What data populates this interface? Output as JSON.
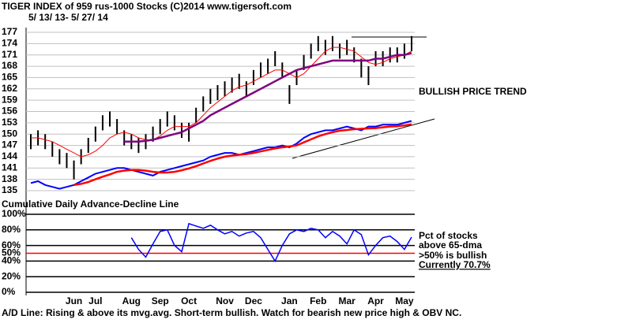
{
  "chart_data": [
    {
      "type": "stock",
      "title": "TIGER INDEX of  959 rus-1000 Stocks  (C)2014  www.tigersoft.com",
      "subtitle": "5/ 13/ 13-  5/ 27/ 14",
      "annotation": "BULLISH PRICE TREND",
      "caption": "A/D Line: Rising & above its mvg.avg. Short-term bullish. Watch for bearish new price high & OBV NC.",
      "categories": [
        null,
        null,
        null,
        null,
        null,
        null,
        "Jun",
        null,
        null,
        "Jul",
        null,
        null,
        null,
        null,
        "Aug",
        null,
        null,
        null,
        "Sep",
        null,
        null,
        null,
        "Oct",
        null,
        null,
        null,
        null,
        "Nov",
        null,
        null,
        null,
        "Dec",
        null,
        null,
        null,
        null,
        "Jan",
        null,
        null,
        null,
        "Feb",
        null,
        null,
        null,
        "Mar",
        null,
        null,
        null,
        "Apr",
        null,
        null,
        null,
        "May",
        null
      ],
      "high": [
        150,
        151,
        150,
        148,
        146,
        145,
        143,
        146,
        149,
        152,
        155,
        156,
        154,
        151,
        150,
        149,
        150,
        152,
        154,
        156,
        155,
        153,
        153,
        157,
        160,
        162,
        163,
        164,
        165,
        166,
        164,
        167,
        169,
        170,
        172,
        169,
        163,
        167,
        171,
        174,
        176,
        175,
        176,
        174,
        175,
        173,
        170,
        168,
        172,
        172,
        173,
        173,
        174,
        176
      ],
      "low": [
        146,
        147,
        146,
        144,
        142,
        141,
        138,
        142,
        145,
        148,
        151,
        152,
        150,
        147,
        146,
        145,
        146,
        148,
        150,
        152,
        151,
        149,
        148,
        153,
        156,
        158,
        159,
        160,
        161,
        162,
        160,
        163,
        165,
        166,
        168,
        165,
        158,
        163,
        167,
        170,
        172,
        171,
        172,
        170,
        171,
        169,
        165,
        163,
        168,
        168,
        169,
        169,
        170,
        172
      ],
      "bar_color": "#000000",
      "series": [
        {
          "color": "#ff0000",
          "line_width": 1,
          "values": [
            149,
            149,
            148.5,
            148,
            147,
            146,
            145,
            144,
            144.5,
            145.5,
            147,
            149,
            150,
            150.5,
            150,
            149,
            148.5,
            148.5,
            149.5,
            151,
            152,
            152,
            152,
            153,
            155,
            157,
            158.5,
            160,
            161.5,
            162.5,
            163,
            164,
            165,
            166,
            167,
            167,
            166,
            165,
            166,
            168,
            170,
            172,
            173,
            173,
            172.5,
            172,
            170.5,
            169,
            168.5,
            169,
            170,
            170.5,
            171,
            172
          ]
        },
        {
          "color": "#800080",
          "line_width": 2.5,
          "values": [
            null,
            null,
            null,
            null,
            null,
            null,
            null,
            null,
            null,
            null,
            null,
            null,
            null,
            148,
            148,
            148,
            148.2,
            148.5,
            149,
            149.5,
            150,
            150.5,
            151.5,
            152.5,
            153.5,
            155,
            156,
            157,
            158,
            159,
            160,
            161,
            162,
            163,
            164,
            165,
            166,
            167,
            167.5,
            168,
            168.5,
            169,
            169.5,
            169.5,
            169.5,
            169.5,
            169.5,
            169.5,
            170,
            170,
            170.5,
            171,
            171,
            171.5
          ]
        },
        {
          "color": "#0000ff",
          "line_width": 2,
          "values": [
            137,
            137.5,
            136.5,
            136,
            135.5,
            136,
            136.5,
            137.5,
            138.5,
            139.5,
            140,
            140.5,
            141,
            141,
            140.5,
            140,
            139.5,
            139,
            140,
            140.5,
            141,
            141.5,
            142,
            142.5,
            143,
            144,
            144.5,
            145,
            145,
            144.5,
            145,
            145.5,
            146,
            146.5,
            146.5,
            147,
            146.5,
            147.5,
            149,
            150,
            150.5,
            151,
            151,
            151.5,
            152,
            151.5,
            151,
            152,
            152,
            152.5,
            152.5,
            152.5,
            153,
            153.5
          ]
        },
        {
          "color": "#ff0000",
          "line_width": 2.5,
          "values": [
            null,
            null,
            null,
            null,
            null,
            null,
            136.5,
            136.8,
            137.3,
            138,
            138.7,
            139.3,
            140,
            140.3,
            140.5,
            140.5,
            140.3,
            140,
            139.8,
            139.8,
            140,
            140.4,
            140.9,
            141.5,
            142.2,
            142.9,
            143.5,
            144,
            144.3,
            144.5,
            144.7,
            145,
            145.4,
            145.8,
            146.2,
            146.5,
            146.7,
            147,
            147.8,
            148.6,
            149.4,
            150,
            150.5,
            150.9,
            151.1,
            151.3,
            151.4,
            151.5,
            151.6,
            151.8,
            152,
            152.1,
            152.3,
            152.6
          ]
        }
      ],
      "ylim": [
        135,
        177
      ],
      "yticks": [
        177,
        174,
        171,
        168,
        165,
        162,
        159,
        156,
        153,
        150,
        147,
        144,
        141,
        138,
        135
      ],
      "grid": true
    },
    {
      "type": "line",
      "title": "Cumulative Daily Advance-Decline Line",
      "notes": [
        "Pct of stocks",
        "above 65-dma",
        ">50% is bullish",
        "Currently  70.7%"
      ],
      "series": [
        {
          "color": "#0000ff",
          "values": [
            null,
            null,
            null,
            null,
            null,
            null,
            null,
            null,
            null,
            null,
            null,
            null,
            null,
            null,
            70,
            55,
            45,
            62,
            78,
            80,
            60,
            52,
            88,
            85,
            82,
            86,
            80,
            75,
            78,
            72,
            76,
            78,
            70,
            55,
            40,
            60,
            75,
            80,
            78,
            82,
            80,
            70,
            78,
            72,
            62,
            80,
            74,
            48,
            60,
            70,
            72,
            65,
            55,
            70.7
          ]
        }
      ],
      "ylim": [
        0,
        100
      ],
      "yticks": [
        {
          "value": 100,
          "label": "100%"
        },
        {
          "value": 80,
          "label": "80%"
        },
        {
          "value": 60,
          "label": "60%"
        },
        {
          "value": 50,
          "label": "50%"
        },
        {
          "value": 40,
          "label": "40%"
        },
        {
          "value": 20,
          "label": "20%"
        },
        {
          "value": 0,
          "label": "0%"
        }
      ],
      "ref_line": 50,
      "ref_color": "#ff0000",
      "grid": true
    }
  ]
}
